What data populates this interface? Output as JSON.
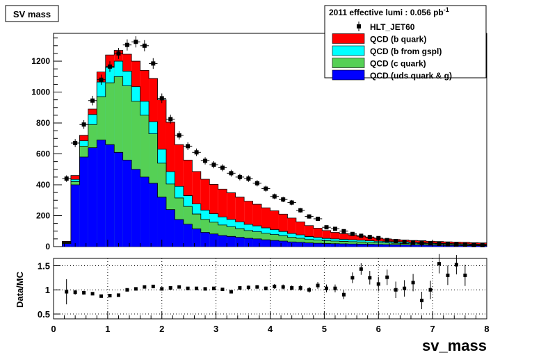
{
  "title_box": "SV mass",
  "legend": {
    "header": "2011 effective lumi : 0.056  pb",
    "header_sup": "-1",
    "entries": [
      {
        "label": "HLT_JET60",
        "kind": "marker",
        "color": "#000000"
      },
      {
        "label": "QCD (b quark)",
        "kind": "fill",
        "color": "#ff0000"
      },
      {
        "label": "QCD (b from gspl)",
        "kind": "fill",
        "color": "#00ffff"
      },
      {
        "label": "QCD (c quark)",
        "kind": "fill",
        "color": "#55d055"
      },
      {
        "label": "QCD (uds quark & g)",
        "kind": "fill",
        "color": "#0000ff"
      }
    ]
  },
  "chart_data": [
    {
      "type": "area",
      "stacked": true,
      "title": "SV mass",
      "xlabel": "sv_mass",
      "xlim": [
        0,
        8
      ],
      "ylim": [
        0,
        1380
      ],
      "y_ticks": [
        0,
        200,
        400,
        600,
        800,
        1000,
        1200
      ],
      "x_ticks": [
        0,
        1,
        2,
        3,
        4,
        5,
        6,
        7,
        8
      ],
      "bin_width": 0.16,
      "x": [
        0.08,
        0.24,
        0.4,
        0.56,
        0.72,
        0.88,
        1.04,
        1.2,
        1.36,
        1.52,
        1.68,
        1.84,
        2.0,
        2.16,
        2.32,
        2.48,
        2.64,
        2.8,
        2.96,
        3.12,
        3.28,
        3.44,
        3.6,
        3.76,
        3.92,
        4.08,
        4.24,
        4.4,
        4.56,
        4.72,
        4.88,
        5.04,
        5.2,
        5.36,
        5.52,
        5.68,
        5.84,
        6.0,
        6.16,
        6.32,
        6.48,
        6.64,
        6.8,
        6.96,
        7.12,
        7.28,
        7.44,
        7.6,
        7.76,
        7.92
      ],
      "series": [
        {
          "name": "QCD (uds quark & g)",
          "color": "#0000ff",
          "values": [
            0,
            20,
            400,
            580,
            640,
            690,
            660,
            610,
            560,
            500,
            450,
            410,
            320,
            240,
            175,
            145,
            115,
            92,
            82,
            72,
            66,
            60,
            54,
            50,
            44,
            40,
            36,
            30,
            28,
            24,
            22,
            20,
            19,
            18,
            17,
            16,
            15,
            14,
            13,
            12,
            11,
            10,
            10,
            9,
            9,
            8,
            8,
            7,
            7,
            6
          ]
        },
        {
          "name": "QCD (c quark)",
          "color": "#55d055",
          "values": [
            0,
            5,
            20,
            70,
            150,
            280,
            400,
            490,
            480,
            440,
            400,
            320,
            220,
            165,
            140,
            115,
            96,
            84,
            76,
            68,
            62,
            56,
            50,
            46,
            42,
            38,
            34,
            30,
            26,
            22,
            20,
            18,
            17,
            16,
            15,
            14,
            13,
            12,
            11,
            10,
            9,
            9,
            8,
            8,
            7,
            7,
            6,
            6,
            5,
            5
          ]
        },
        {
          "name": "QCD (b from gspl)",
          "color": "#00ffff",
          "values": [
            0,
            4,
            15,
            35,
            65,
            95,
            100,
            100,
            95,
            95,
            90,
            78,
            90,
            80,
            75,
            70,
            65,
            60,
            55,
            52,
            48,
            44,
            40,
            38,
            35,
            32,
            28,
            25,
            22,
            19,
            17,
            15,
            14,
            13,
            12,
            11,
            10,
            9,
            9,
            8,
            8,
            7,
            7,
            6,
            6,
            5,
            5,
            5,
            4,
            4
          ]
        },
        {
          "name": "QCD (b quark)",
          "color": "#ff0000",
          "values": [
            0,
            5,
            25,
            35,
            35,
            65,
            80,
            70,
            110,
            165,
            200,
            280,
            320,
            320,
            270,
            230,
            210,
            200,
            190,
            180,
            172,
            160,
            150,
            140,
            130,
            122,
            112,
            100,
            84,
            71,
            60,
            51,
            42,
            37,
            32,
            26,
            22,
            19,
            17,
            16,
            15,
            14,
            13,
            12,
            11,
            11,
            10,
            10,
            9,
            9
          ]
        }
      ],
      "data": {
        "name": "HLT_JET60",
        "x": [
          0.24,
          0.4,
          0.56,
          0.72,
          0.88,
          1.04,
          1.2,
          1.36,
          1.52,
          1.68,
          1.84,
          2.0,
          2.16,
          2.32,
          2.48,
          2.64,
          2.8,
          2.96,
          3.12,
          3.28,
          3.44,
          3.6,
          3.76,
          3.92,
          4.08,
          4.24,
          4.4,
          4.56,
          4.72,
          4.88,
          5.04,
          5.2,
          5.36,
          5.52,
          5.68,
          5.84,
          6.0,
          6.16,
          6.32,
          6.48,
          6.64,
          6.8,
          6.96,
          7.12,
          7.28,
          7.44,
          7.6,
          7.76,
          7.92
        ],
        "values": [
          440,
          670,
          790,
          945,
          1080,
          1165,
          1250,
          1305,
          1325,
          1300,
          1185,
          960,
          825,
          720,
          650,
          610,
          555,
          530,
          510,
          475,
          450,
          440,
          410,
          375,
          325,
          305,
          285,
          235,
          195,
          180,
          125,
          115,
          100,
          82,
          70,
          62,
          55,
          42,
          36,
          31,
          26,
          22,
          21,
          18,
          16,
          15,
          12,
          10,
          9
        ]
      }
    },
    {
      "type": "scatter",
      "ylabel": "Data/MC",
      "xlabel": "sv_mass",
      "xlim": [
        0,
        8
      ],
      "ylim": [
        0.4,
        1.65
      ],
      "y_ticks": [
        0.5,
        1,
        1.5
      ],
      "x_ticks": [
        0,
        1,
        2,
        3,
        4,
        5,
        6,
        7,
        8
      ],
      "grid": true,
      "x": [
        0.24,
        0.4,
        0.56,
        0.72,
        0.88,
        1.04,
        1.2,
        1.36,
        1.52,
        1.68,
        1.84,
        2.0,
        2.16,
        2.32,
        2.48,
        2.64,
        2.8,
        2.96,
        3.12,
        3.28,
        3.44,
        3.6,
        3.76,
        3.92,
        4.08,
        4.24,
        4.4,
        4.56,
        4.72,
        4.88,
        5.04,
        5.2,
        5.36,
        5.52,
        5.68,
        5.84,
        6.0,
        6.16,
        6.32,
        6.48,
        6.64,
        6.8,
        6.96,
        7.12,
        7.28,
        7.44,
        7.6
      ],
      "values": [
        0.96,
        0.95,
        0.94,
        0.92,
        0.87,
        0.88,
        0.89,
        1.0,
        1.02,
        1.06,
        1.07,
        1.02,
        1.04,
        1.06,
        1.03,
        1.03,
        1.02,
        1.03,
        1.01,
        0.96,
        1.04,
        1.05,
        1.06,
        1.03,
        1.07,
        1.06,
        1.04,
        1.04,
        1.0,
        1.09,
        1.03,
        1.03,
        0.9,
        1.25,
        1.43,
        1.25,
        1.12,
        1.26,
        1.0,
        1.03,
        1.15,
        0.78,
        1.0,
        1.54,
        1.3,
        1.52,
        1.3
      ],
      "errors": [
        0.26,
        0.05,
        0.04,
        0.03,
        0.03,
        0.03,
        0.03,
        0.03,
        0.03,
        0.03,
        0.03,
        0.03,
        0.03,
        0.03,
        0.03,
        0.03,
        0.03,
        0.03,
        0.03,
        0.03,
        0.03,
        0.04,
        0.04,
        0.04,
        0.05,
        0.05,
        0.05,
        0.06,
        0.06,
        0.07,
        0.08,
        0.08,
        0.09,
        0.11,
        0.12,
        0.14,
        0.15,
        0.16,
        0.17,
        0.17,
        0.18,
        0.18,
        0.19,
        0.2,
        0.2,
        0.2,
        0.22
      ]
    }
  ]
}
